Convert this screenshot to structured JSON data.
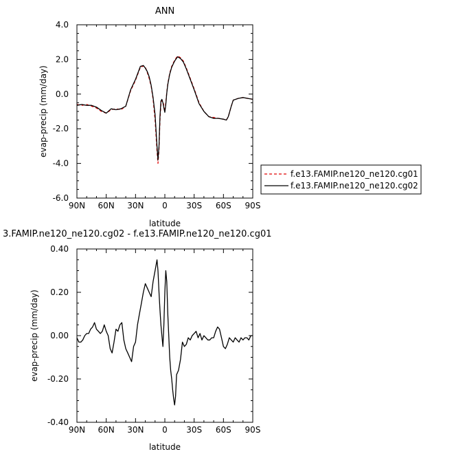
{
  "chart_data": [
    {
      "type": "line",
      "title": "ANN",
      "xlabel": "latitude",
      "ylabel": "evap-precip (mm/day)",
      "xlim": [
        90,
        -90
      ],
      "ylim": [
        -6.0,
        4.0
      ],
      "yticks": [
        4.0,
        2.0,
        0.0,
        -2.0,
        -4.0,
        -6.0
      ],
      "ytick_labels": [
        "4.0",
        "2.0",
        "0.0",
        "-2.0",
        "-4.0",
        "-6.0"
      ],
      "xticks": [
        90,
        60,
        30,
        0,
        -30,
        -60,
        -90
      ],
      "xtick_labels": [
        "90N",
        "60N",
        "30N",
        "0",
        "30S",
        "60S",
        "90S"
      ],
      "legend_position": "right",
      "series": [
        {
          "name": "f.e13.FAMIP.ne120_ne120.cg01",
          "color": "#e00000",
          "dash": "dashed",
          "x": [
            90,
            85,
            80,
            75,
            70,
            65,
            60,
            55,
            50,
            45,
            40,
            35,
            30,
            25,
            22,
            20,
            18,
            16,
            14,
            12,
            10,
            8,
            7,
            6,
            5,
            4,
            3,
            2,
            1,
            0,
            -1,
            -2,
            -3,
            -5,
            -7,
            -10,
            -13,
            -16,
            -19,
            -22,
            -25,
            -30,
            -35,
            -40,
            -45,
            -50,
            -55,
            -60,
            -63,
            -65,
            -68,
            -70,
            -75,
            -80,
            -85,
            -90
          ],
          "y": [
            -0.6,
            -0.65,
            -0.6,
            -0.7,
            -0.8,
            -1.0,
            -1.1,
            -0.9,
            -0.85,
            -0.9,
            -0.7,
            0.2,
            0.8,
            1.55,
            1.62,
            1.55,
            1.25,
            0.9,
            0.45,
            -0.3,
            -1.5,
            -3.3,
            -4.0,
            -3.2,
            -1.5,
            -0.6,
            -0.35,
            -0.4,
            -0.7,
            -1.0,
            -0.5,
            0.1,
            0.6,
            1.2,
            1.6,
            1.95,
            2.2,
            2.1,
            1.9,
            1.5,
            1.05,
            0.3,
            -0.5,
            -1.0,
            -1.3,
            -1.35,
            -1.4,
            -1.45,
            -1.5,
            -1.3,
            -0.7,
            -0.35,
            -0.25,
            -0.2,
            -0.25,
            -0.3
          ]
        },
        {
          "name": "f.e13.FAMIP.ne120_ne120.cg02",
          "color": "#000000",
          "dash": "solid",
          "x": [
            90,
            85,
            80,
            75,
            70,
            65,
            60,
            55,
            50,
            45,
            40,
            35,
            30,
            25,
            22,
            20,
            18,
            16,
            14,
            12,
            10,
            8,
            7,
            6,
            5,
            4,
            3,
            2,
            1,
            0,
            -1,
            -2,
            -3,
            -5,
            -7,
            -10,
            -13,
            -16,
            -19,
            -22,
            -25,
            -30,
            -35,
            -40,
            -45,
            -50,
            -55,
            -60,
            -63,
            -65,
            -68,
            -70,
            -75,
            -80,
            -85,
            -90
          ],
          "y": [
            -0.65,
            -0.6,
            -0.65,
            -0.65,
            -0.75,
            -0.95,
            -1.1,
            -0.85,
            -0.9,
            -0.85,
            -0.7,
            0.25,
            0.85,
            1.6,
            1.65,
            1.5,
            1.3,
            1.0,
            0.5,
            -0.2,
            -1.2,
            -3.0,
            -3.8,
            -3.0,
            -1.3,
            -0.4,
            -0.3,
            -0.5,
            -0.8,
            -1.05,
            -0.6,
            0.05,
            0.55,
            1.15,
            1.55,
            1.9,
            2.15,
            2.05,
            1.85,
            1.45,
            1.0,
            0.25,
            -0.55,
            -1.0,
            -1.3,
            -1.4,
            -1.4,
            -1.45,
            -1.5,
            -1.3,
            -0.7,
            -0.35,
            -0.25,
            -0.2,
            -0.25,
            -0.3
          ]
        }
      ]
    },
    {
      "type": "line",
      "title": "3.FAMIP.ne120_ne120.cg02 - f.e13.FAMIP.ne120_ne120.cg01",
      "xlabel": "latitude",
      "ylabel": "evap-precip (mm/day)",
      "xlim": [
        90,
        -90
      ],
      "ylim": [
        -0.4,
        0.4
      ],
      "yticks": [
        0.4,
        0.2,
        0.0,
        -0.2,
        -0.4
      ],
      "ytick_labels": [
        "0.40",
        "0.20",
        "0.00",
        "-0.20",
        "-0.40"
      ],
      "xticks": [
        90,
        60,
        30,
        0,
        -30,
        -60,
        -90
      ],
      "xtick_labels": [
        "90N",
        "60N",
        "30N",
        "0",
        "30S",
        "60S",
        "90S"
      ],
      "series": [
        {
          "color": "#000000",
          "dash": "solid",
          "x": [
            90,
            88,
            86,
            84,
            82,
            80,
            78,
            76,
            74,
            72,
            70,
            68,
            66,
            64,
            62,
            60,
            58,
            56,
            54,
            52,
            50,
            48,
            46,
            44,
            42,
            40,
            38,
            36,
            34,
            32,
            30,
            28,
            26,
            24,
            22,
            20,
            18,
            16,
            14,
            12,
            10,
            8,
            7,
            6,
            5,
            4,
            3,
            2,
            1,
            0,
            -1,
            -2,
            -3,
            -4,
            -5,
            -6,
            -7,
            -8,
            -9,
            -10,
            -11,
            -12,
            -14,
            -16,
            -18,
            -20,
            -22,
            -24,
            -26,
            -28,
            -30,
            -32,
            -34,
            -36,
            -38,
            -40,
            -42,
            -44,
            -46,
            -48,
            -50,
            -52,
            -54,
            -56,
            -58,
            -60,
            -62,
            -64,
            -66,
            -68,
            -70,
            -72,
            -74,
            -76,
            -78,
            -80,
            -82,
            -84,
            -86,
            -88,
            -90
          ],
          "y": [
            -0.01,
            -0.03,
            -0.03,
            -0.02,
            0.0,
            0.01,
            0.01,
            0.03,
            0.04,
            0.06,
            0.03,
            0.02,
            0.01,
            0.02,
            0.05,
            0.02,
            0.0,
            -0.06,
            -0.08,
            -0.03,
            0.03,
            0.02,
            0.05,
            0.06,
            -0.02,
            -0.06,
            -0.08,
            -0.1,
            -0.12,
            -0.05,
            -0.03,
            0.05,
            0.1,
            0.15,
            0.2,
            0.24,
            0.22,
            0.2,
            0.18,
            0.25,
            0.3,
            0.35,
            0.3,
            0.2,
            0.12,
            0.05,
            0.0,
            -0.05,
            0.05,
            0.2,
            0.3,
            0.25,
            0.1,
            0.0,
            -0.1,
            -0.16,
            -0.2,
            -0.25,
            -0.29,
            -0.32,
            -0.28,
            -0.18,
            -0.16,
            -0.11,
            -0.03,
            -0.05,
            -0.04,
            -0.01,
            -0.02,
            0.0,
            0.01,
            0.02,
            -0.01,
            0.01,
            -0.02,
            0.0,
            -0.01,
            -0.02,
            -0.02,
            -0.01,
            -0.01,
            0.02,
            0.04,
            0.03,
            -0.01,
            -0.05,
            -0.06,
            -0.04,
            -0.01,
            -0.02,
            -0.03,
            -0.01,
            -0.02,
            -0.03,
            -0.01,
            -0.02,
            -0.01,
            -0.01,
            -0.02,
            0.0,
            0.0
          ]
        }
      ]
    }
  ]
}
